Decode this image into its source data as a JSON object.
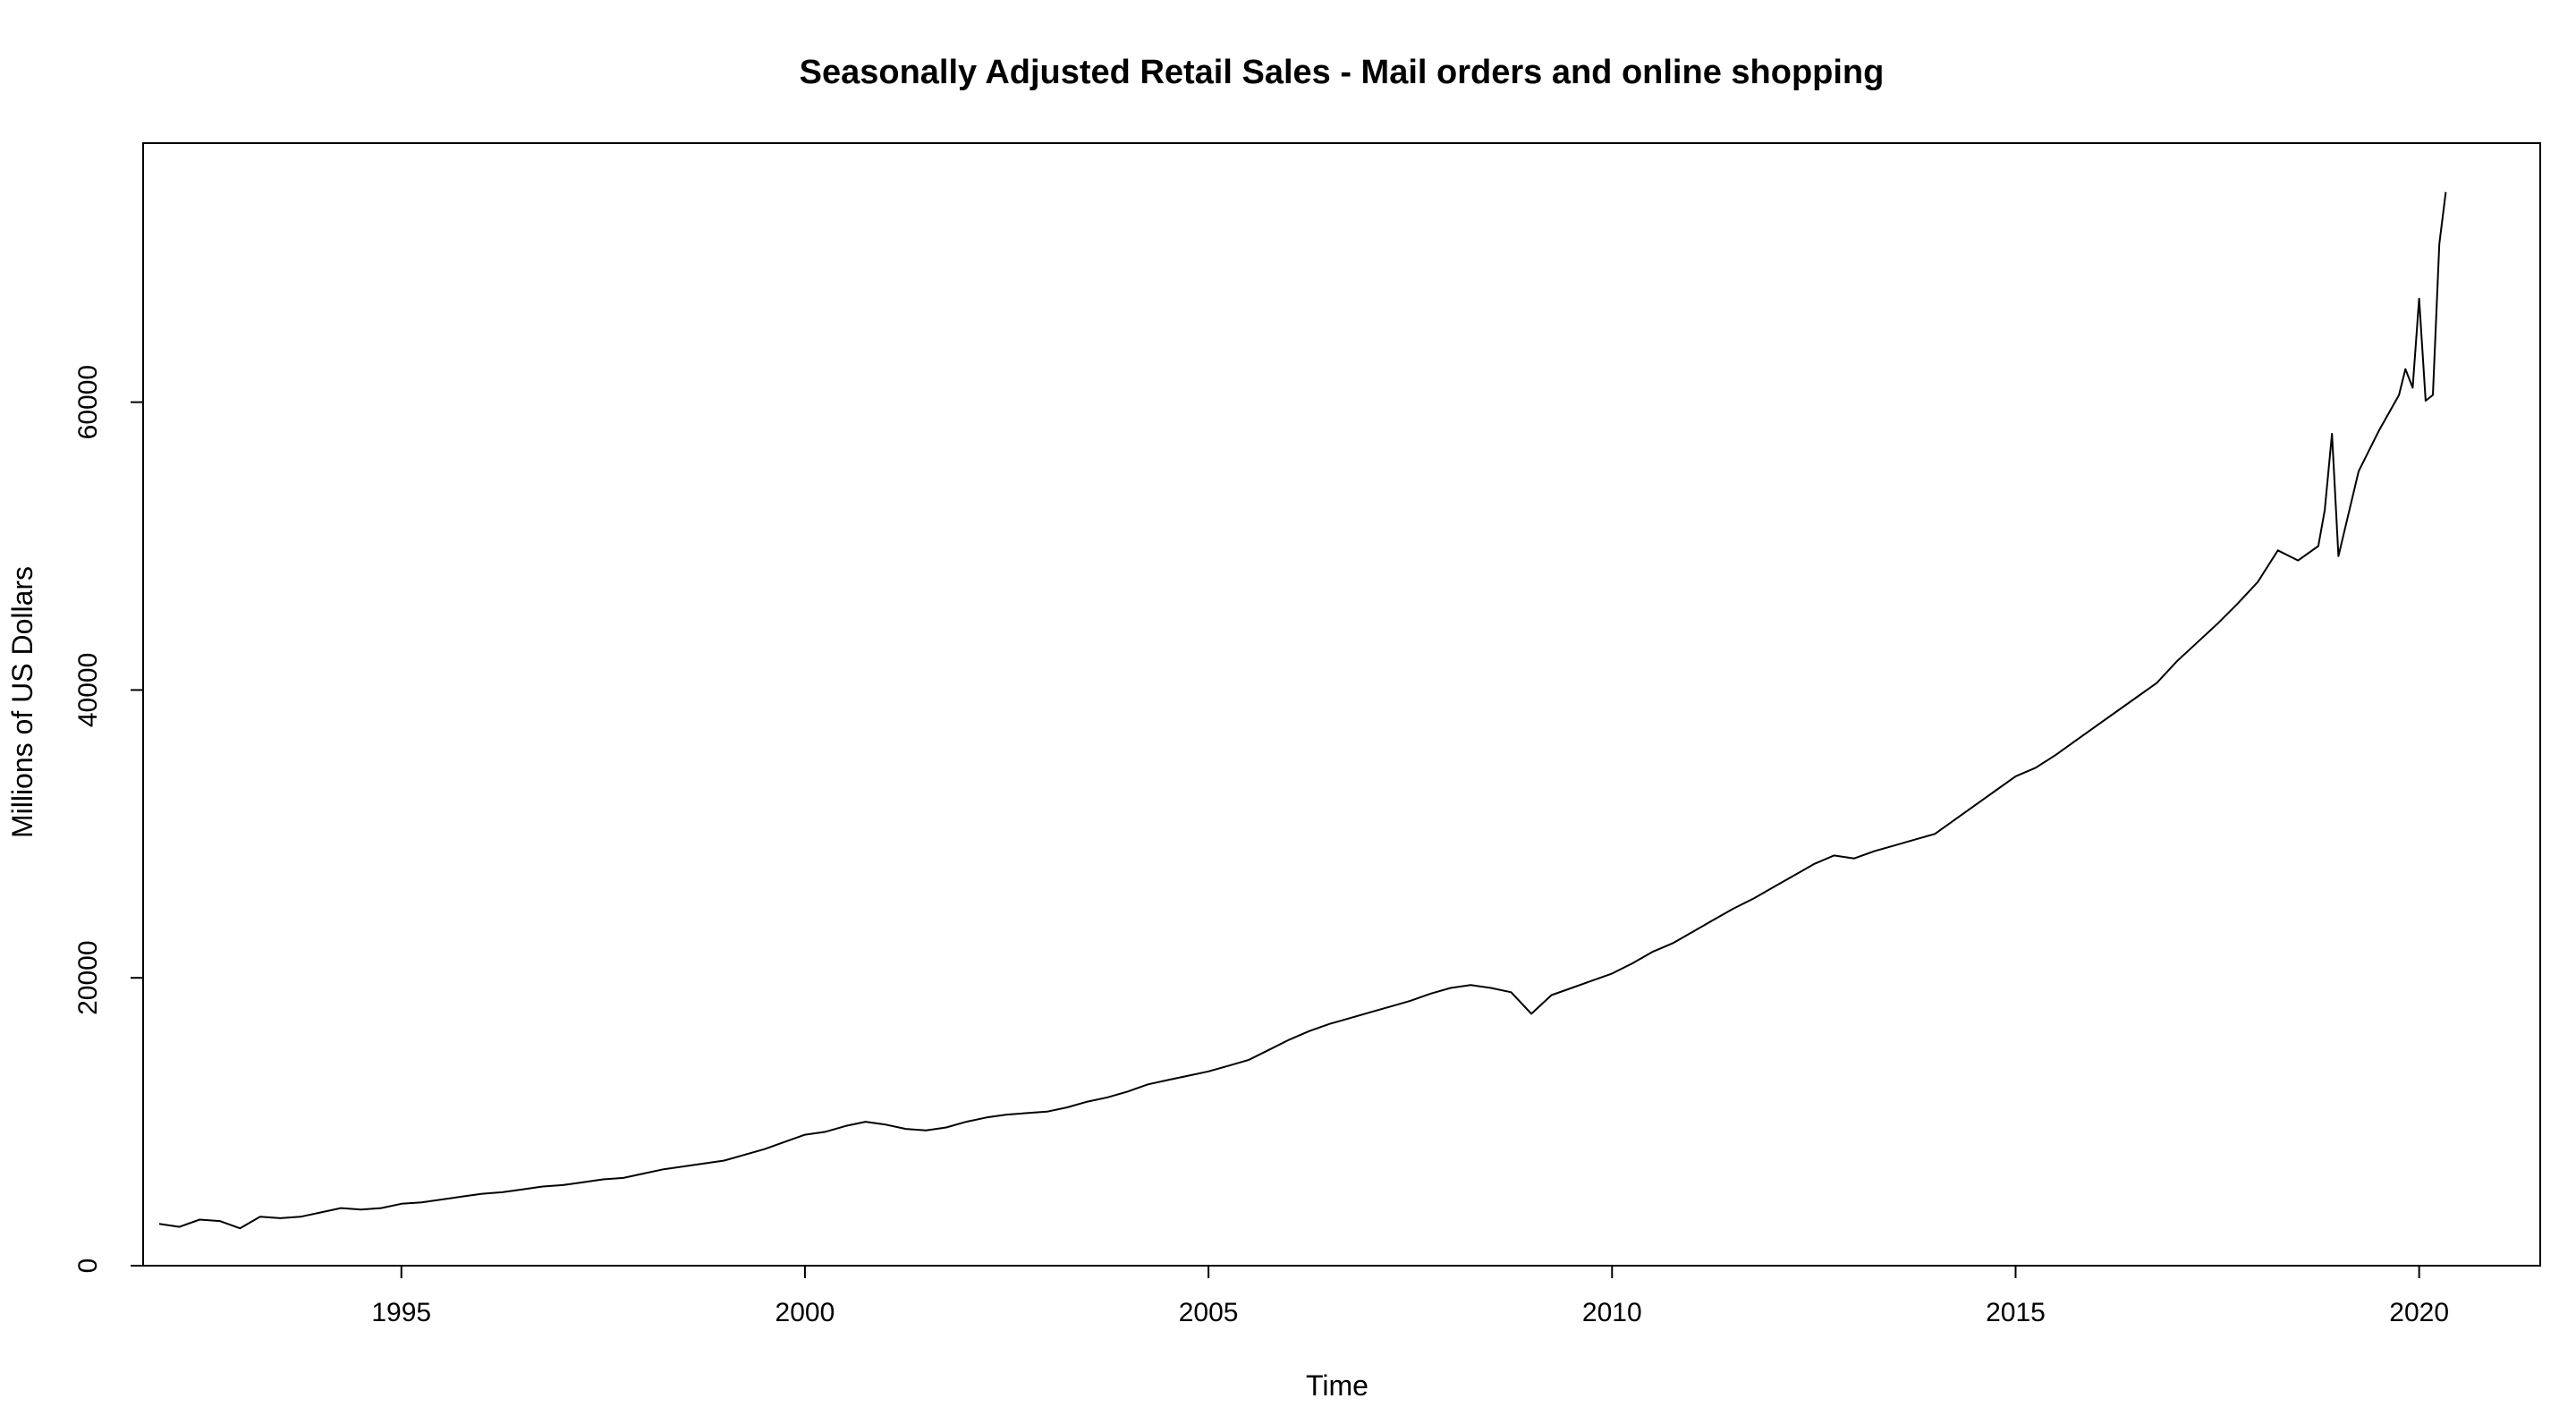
{
  "chart_data": {
    "type": "line",
    "title": "Seasonally Adjusted Retail Sales - Mail orders and online shopping",
    "xlabel": "Time",
    "ylabel": "Millions of US Dollars",
    "xlim": [
      1991.8,
      2021.5
    ],
    "ylim": [
      0,
      78000
    ],
    "x_ticks": [
      1995,
      2000,
      2005,
      2010,
      2015,
      2020
    ],
    "y_ticks": [
      0,
      20000,
      40000,
      60000
    ],
    "grid": false,
    "legend": "none",
    "line_color": "#000000",
    "series": [
      {
        "x": [
          1992.0,
          1992.25,
          1992.5,
          1992.75,
          1993.0,
          1993.25,
          1993.5,
          1993.75,
          1994.0,
          1994.25,
          1994.5,
          1994.75,
          1995.0,
          1995.25,
          1995.5,
          1995.75,
          1996.0,
          1996.25,
          1996.5,
          1996.75,
          1997.0,
          1997.25,
          1997.5,
          1997.75,
          1998.0,
          1998.25,
          1998.5,
          1998.75,
          1999.0,
          1999.25,
          1999.5,
          1999.75,
          2000.0,
          2000.25,
          2000.5,
          2000.75,
          2001.0,
          2001.25,
          2001.5,
          2001.75,
          2002.0,
          2002.25,
          2002.5,
          2002.75,
          2003.0,
          2003.25,
          2003.5,
          2003.75,
          2004.0,
          2004.25,
          2004.5,
          2004.75,
          2005.0,
          2005.25,
          2005.5,
          2005.75,
          2006.0,
          2006.25,
          2006.5,
          2006.75,
          2007.0,
          2007.25,
          2007.5,
          2007.75,
          2008.0,
          2008.25,
          2008.5,
          2008.75,
          2009.0,
          2009.25,
          2009.5,
          2009.75,
          2010.0,
          2010.25,
          2010.5,
          2010.75,
          2011.0,
          2011.25,
          2011.5,
          2011.75,
          2012.0,
          2012.25,
          2012.5,
          2012.75,
          2013.0,
          2013.25,
          2013.5,
          2013.75,
          2014.0,
          2014.25,
          2014.5,
          2014.75,
          2015.0,
          2015.25,
          2015.5,
          2015.75,
          2016.0,
          2016.25,
          2016.5,
          2016.75,
          2017.0,
          2017.25,
          2017.5,
          2017.75,
          2018.0,
          2018.25,
          2018.5,
          2018.75,
          2018.83,
          2018.92,
          2019.0,
          2019.25,
          2019.5,
          2019.75,
          2019.83,
          2019.92,
          2020.0,
          2020.08,
          2020.17,
          2020.25,
          2020.33
        ],
        "values": [
          2900,
          2700,
          3200,
          3100,
          2600,
          3400,
          3300,
          3400,
          3700,
          4000,
          3900,
          4000,
          4300,
          4400,
          4600,
          4800,
          5000,
          5100,
          5300,
          5500,
          5600,
          5800,
          6000,
          6100,
          6400,
          6700,
          6900,
          7100,
          7300,
          7700,
          8100,
          8600,
          9100,
          9300,
          9700,
          10000,
          9800,
          9500,
          9400,
          9600,
          10000,
          10300,
          10500,
          10600,
          10700,
          11000,
          11400,
          11700,
          12100,
          12600,
          12900,
          13200,
          13500,
          13900,
          14300,
          15000,
          15700,
          16300,
          16800,
          17200,
          17600,
          18000,
          18400,
          18900,
          19300,
          19500,
          19300,
          19000,
          17500,
          18800,
          19300,
          19800,
          20300,
          21000,
          21800,
          22400,
          23200,
          24000,
          24800,
          25500,
          26300,
          27100,
          27900,
          28500,
          28300,
          28800,
          29200,
          29600,
          30000,
          31000,
          32000,
          33000,
          34000,
          34600,
          35500,
          36500,
          37500,
          38500,
          39500,
          40500,
          42000,
          43300,
          44600,
          46000,
          47500,
          49700,
          49000,
          50000,
          52500,
          57800,
          49300,
          55200,
          58000,
          60500,
          62300,
          61000,
          67200,
          60100,
          60500,
          71000,
          74600
        ]
      }
    ]
  }
}
